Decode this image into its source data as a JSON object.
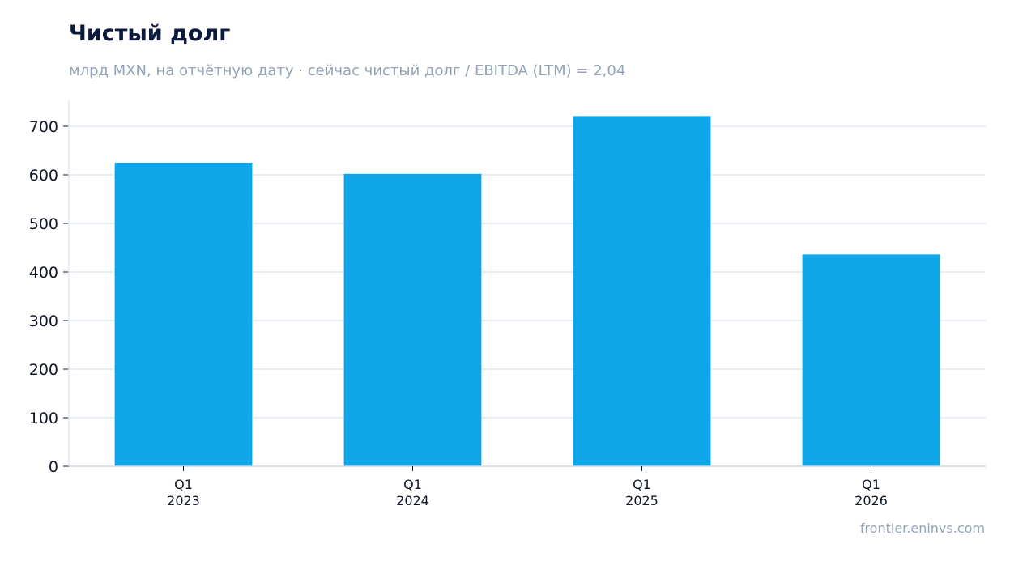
{
  "chart_data": {
    "type": "bar",
    "title": "Чистый долг",
    "subtitle": "млрд MXN, на отчётную дату · сейчас чистый долг / EBITDA (LTM) = 2,04",
    "categories": [
      [
        "Q1",
        "2023"
      ],
      [
        "Q1",
        "2024"
      ],
      [
        "Q1",
        "2025"
      ],
      [
        "Q1",
        "2026"
      ]
    ],
    "values": [
      625,
      602,
      721,
      436
    ],
    "ylim": [
      0,
      755
    ],
    "yticks": [
      0,
      100,
      200,
      300,
      400,
      500,
      600,
      700
    ],
    "grid": true,
    "bar_color": "#0ea5e9",
    "grid_color": "#e2e8f0",
    "axis_color": "#cbd5e1",
    "title_color": "#0b1a3d",
    "muted_color": "#94a3b8"
  },
  "footer": {
    "credit": "frontier.eninvs.com"
  }
}
